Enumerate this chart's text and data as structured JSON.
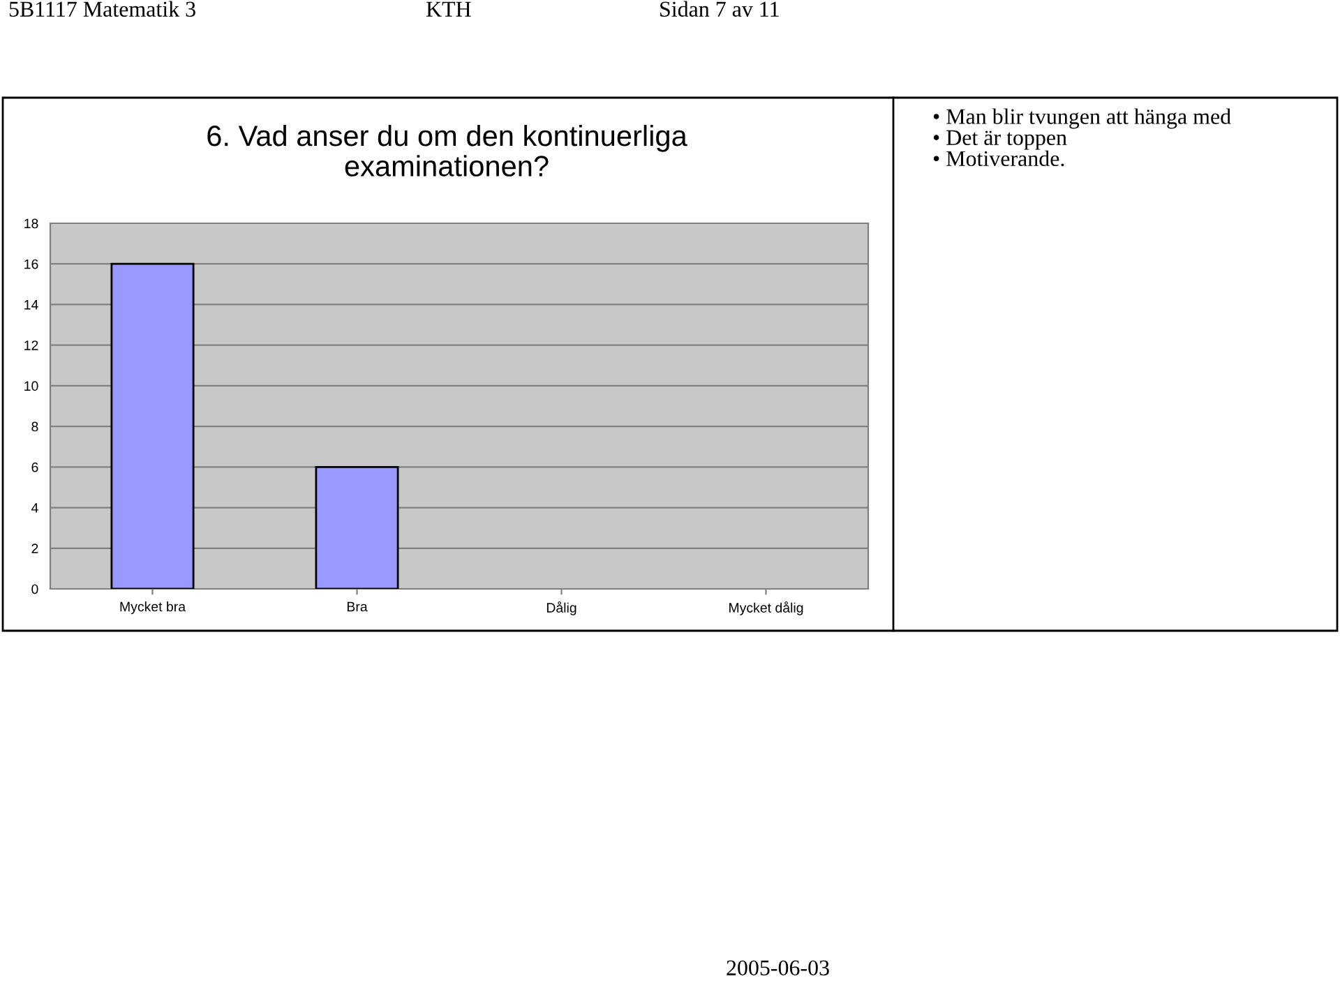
{
  "chart_data": {
    "type": "bar",
    "title": "6. Vad anser du om den kontinuerliga\nexaminationen?",
    "categories": [
      "Mycket bra",
      "Bra",
      "Dålig",
      "Mycket dålig"
    ],
    "values": [
      16,
      6,
      0,
      0
    ],
    "color": "#9999ff",
    "ylim": [
      0,
      18
    ],
    "yticks": [
      0,
      2,
      4,
      6,
      8,
      10,
      12,
      14,
      16,
      18
    ],
    "grid": "y",
    "annotations": [
      "5B1117 Matematik 3",
      "KTH",
      "Sidan 7 av 11",
      "• Man blir tvungen att hänga med\n• Det är toppen\n• Motiverande.",
      "2005-06-03"
    ]
  }
}
